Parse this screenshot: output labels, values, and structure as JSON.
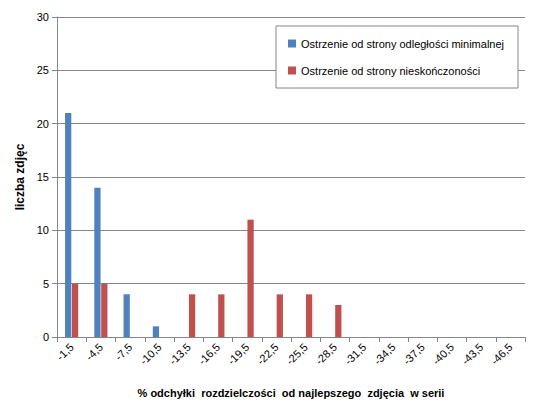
{
  "chart_data": {
    "type": "bar",
    "x_label": "% odchyłki  rozdzielczości  od najlepszego  zdjęcia  w serii",
    "y_label": "liczba zdjęc",
    "categories": [
      "-1,5",
      "-4,5",
      "-7,5",
      "-10,5",
      "-13,5",
      "-16,5",
      "-19,5",
      "-22,5",
      "-25,5",
      "-28,5",
      "-31,5",
      "-34,5",
      "-37,5",
      "-40,5",
      "-43,5",
      "-46,5"
    ],
    "series": [
      {
        "name": "Ostrzenie od strony odległości minimalnej",
        "color": "#4f81bd",
        "values": [
          21,
          14,
          4,
          1,
          0,
          0,
          0,
          0,
          0,
          0,
          0,
          0,
          0,
          0,
          0,
          0
        ]
      },
      {
        "name": "Ostrzenie od strony nieskończoności",
        "color": "#c0504d",
        "values": [
          5,
          5,
          0,
          0,
          4,
          4,
          11,
          4,
          4,
          3,
          0,
          0,
          0,
          0,
          0,
          0
        ]
      }
    ],
    "ylim": [
      0,
      30
    ],
    "yticks": [
      0,
      5,
      10,
      15,
      20,
      25,
      30
    ],
    "grid": true,
    "legend": "top-right"
  }
}
